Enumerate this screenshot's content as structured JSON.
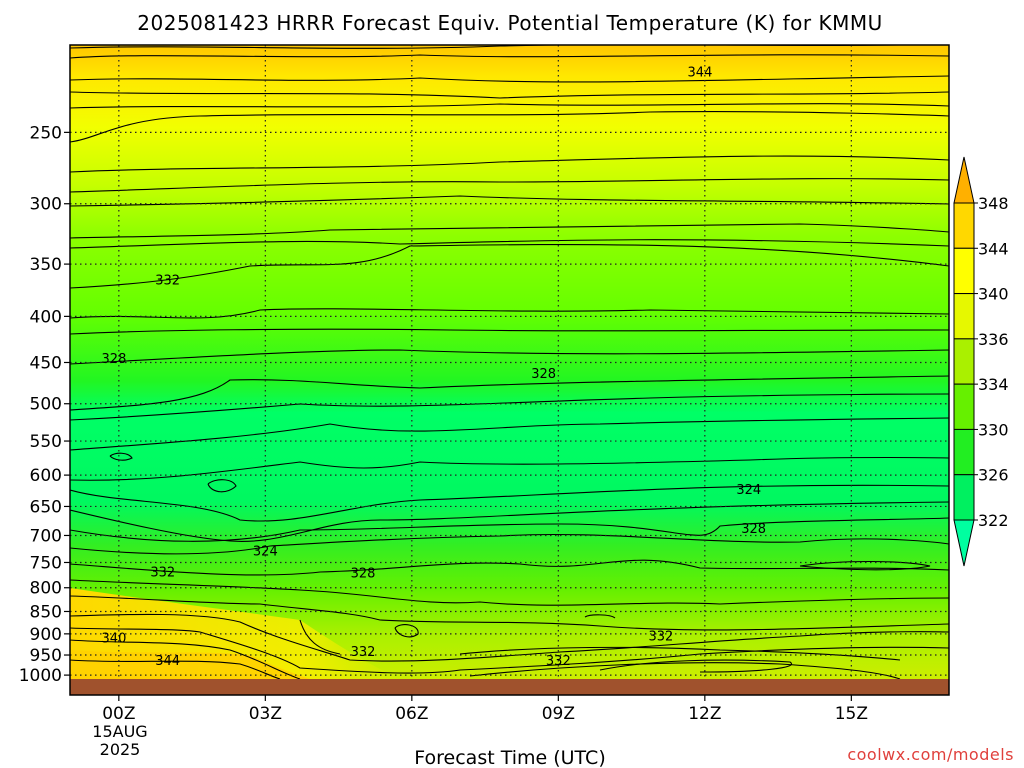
{
  "title": "2025081423 HRRR Forecast Equiv. Potential Temperature (K) for KMMU",
  "credit": "coolwx.com/models",
  "chart_data": {
    "type": "heatmap",
    "title": "2025081423 HRRR Forecast Equiv. Potential Temperature (K) for KMMU",
    "xlabel": "Forecast Time (UTC)",
    "ylabel": "",
    "x_ticks": [
      "00Z",
      "03Z",
      "06Z",
      "09Z",
      "12Z",
      "15Z"
    ],
    "x_tick_hours": [
      0,
      3,
      6,
      9,
      12,
      15
    ],
    "x_date_label": [
      "15AUG",
      "2025"
    ],
    "xlim_hours": [
      -1,
      17
    ],
    "y_ticks": [
      "250",
      "300",
      "350",
      "400",
      "450",
      "500",
      "550",
      "600",
      "650",
      "700",
      "750",
      "800",
      "850",
      "900",
      "950",
      "1000"
    ],
    "y_tick_values": [
      250,
      300,
      350,
      400,
      450,
      500,
      550,
      600,
      650,
      700,
      750,
      800,
      850,
      900,
      950,
      1000
    ],
    "y_scale": "log-pressure",
    "y_range": [
      200,
      1010
    ],
    "grid": true,
    "colorbar": {
      "levels": [
        322,
        326,
        330,
        334,
        336,
        340,
        344,
        348
      ],
      "labels": [
        "322",
        "326",
        "330",
        "334",
        "336",
        "340",
        "344",
        "348"
      ],
      "colors": [
        "#00ffa0",
        "#00f060",
        "#22ee22",
        "#66f000",
        "#aaf000",
        "#e6f800",
        "#ffff00",
        "#ffd800",
        "#ffb000"
      ]
    },
    "contour_labels": [
      {
        "text": "344",
        "hour": 11.9,
        "p": 214
      },
      {
        "text": "332",
        "hour": 1.0,
        "p": 364
      },
      {
        "text": "328",
        "hour": -0.1,
        "p": 445
      },
      {
        "text": "328",
        "hour": 8.7,
        "p": 462
      },
      {
        "text": "324",
        "hour": 12.9,
        "p": 622
      },
      {
        "text": "328",
        "hour": 13.0,
        "p": 687
      },
      {
        "text": "324",
        "hour": 3.0,
        "p": 727
      },
      {
        "text": "332",
        "hour": 0.9,
        "p": 767
      },
      {
        "text": "328",
        "hour": 5.0,
        "p": 769
      },
      {
        "text": "332",
        "hour": 11.1,
        "p": 904
      },
      {
        "text": "332",
        "hour": 5.0,
        "p": 940
      },
      {
        "text": "340",
        "hour": -0.1,
        "p": 908
      },
      {
        "text": "344",
        "hour": 1.0,
        "p": 962
      },
      {
        "text": "332",
        "hour": 9.0,
        "p": 962
      }
    ]
  }
}
